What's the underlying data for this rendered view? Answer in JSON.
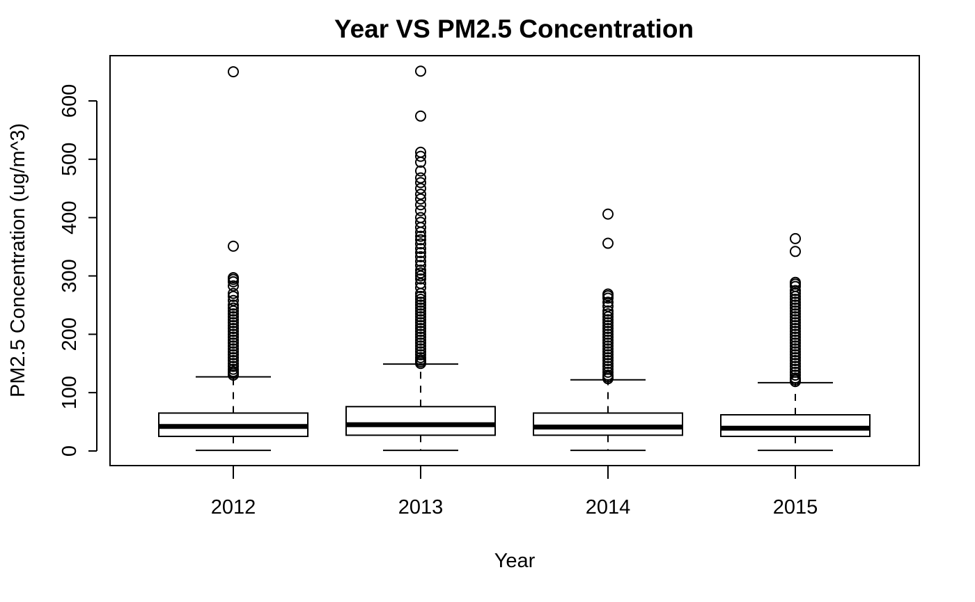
{
  "chart_data": {
    "type": "boxplot",
    "title": "Year VS PM2.5 Concentration",
    "xlabel": "Year",
    "ylabel": "PM2.5 Concentration (ug/m^3)",
    "ylim": [
      -25,
      675
    ],
    "yticks": [
      0,
      100,
      200,
      300,
      400,
      500,
      600
    ],
    "ytick_labels": [
      "0",
      "100",
      "200",
      "300",
      "400",
      "500",
      "600"
    ],
    "grid": false,
    "categories": [
      "2012",
      "2013",
      "2014",
      "2015"
    ],
    "boxes": [
      {
        "category": "2012",
        "whisker_low": 1,
        "q1": 25,
        "median": 42,
        "q3": 65,
        "whisker_high": 127,
        "outliers": [
          130,
          133,
          136,
          140,
          145,
          150,
          155,
          160,
          165,
          170,
          175,
          180,
          185,
          190,
          195,
          200,
          205,
          210,
          215,
          220,
          225,
          230,
          235,
          240,
          245,
          250,
          258,
          265,
          270,
          283,
          290,
          294,
          297,
          351,
          650
        ]
      },
      {
        "category": "2013",
        "whisker_low": 1,
        "q1": 27,
        "median": 45,
        "q3": 76,
        "whisker_high": 149,
        "outliers": [
          150,
          153,
          156,
          160,
          165,
          170,
          175,
          180,
          185,
          190,
          195,
          200,
          205,
          210,
          215,
          220,
          225,
          230,
          235,
          240,
          245,
          250,
          255,
          260,
          265,
          270,
          280,
          287,
          295,
          300,
          305,
          310,
          318,
          325,
          333,
          340,
          347,
          355,
          362,
          368,
          375,
          383,
          392,
          400,
          412,
          422,
          432,
          440,
          450,
          460,
          468,
          480,
          495,
          505,
          512,
          574,
          651
        ]
      },
      {
        "category": "2014",
        "whisker_low": 1,
        "q1": 27,
        "median": 41,
        "q3": 65,
        "whisker_high": 122,
        "outliers": [
          124,
          127,
          130,
          135,
          140,
          145,
          150,
          155,
          160,
          165,
          170,
          175,
          180,
          185,
          190,
          195,
          200,
          205,
          210,
          215,
          220,
          225,
          230,
          235,
          240,
          248,
          255,
          262,
          266,
          269,
          356,
          406
        ]
      },
      {
        "category": "2015",
        "whisker_low": 1,
        "q1": 25,
        "median": 39,
        "q3": 62,
        "whisker_high": 117,
        "outliers": [
          119,
          122,
          125,
          130,
          135,
          140,
          145,
          150,
          155,
          160,
          165,
          170,
          175,
          180,
          185,
          190,
          195,
          200,
          205,
          210,
          215,
          220,
          225,
          230,
          235,
          240,
          245,
          250,
          255,
          260,
          265,
          270,
          275,
          282,
          286,
          289,
          342,
          364
        ]
      }
    ]
  }
}
